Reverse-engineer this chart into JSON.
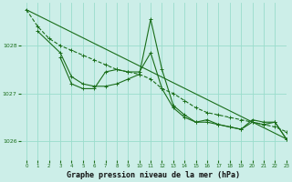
{
  "background_color": "#cceee8",
  "grid_color": "#99ddcc",
  "line_color": "#1a6e1a",
  "title": "Graphe pression niveau de la mer (hPa)",
  "xlim": [
    -0.5,
    23
  ],
  "ylim": [
    1025.6,
    1028.9
  ],
  "yticks": [
    1026,
    1027,
    1028
  ],
  "xticks": [
    0,
    1,
    2,
    3,
    4,
    5,
    6,
    7,
    8,
    9,
    10,
    11,
    12,
    13,
    14,
    15,
    16,
    17,
    18,
    19,
    20,
    21,
    22,
    23
  ],
  "series": [
    {
      "x": [
        0,
        1,
        2,
        3,
        4,
        5,
        6,
        7,
        8,
        9,
        10,
        11,
        12,
        13,
        14,
        15,
        16,
        17,
        18,
        19,
        20,
        21,
        22,
        23
      ],
      "y": [
        1028.75,
        1028.4,
        1028.15,
        1028.0,
        1027.9,
        1027.8,
        1027.7,
        1027.6,
        1027.5,
        1027.45,
        1027.4,
        1027.3,
        1027.1,
        1027.0,
        1026.85,
        1026.7,
        1026.6,
        1026.55,
        1026.5,
        1026.45,
        1026.4,
        1026.35,
        1026.3,
        1026.2
      ],
      "style": "dashed",
      "marker": "+"
    },
    {
      "x": [
        1,
        3,
        4,
        5,
        6,
        7,
        8,
        9,
        10,
        11,
        12,
        13,
        14,
        15,
        16,
        17,
        18,
        19,
        20,
        21,
        22,
        23
      ],
      "y": [
        1028.3,
        1027.85,
        1027.35,
        1027.2,
        1027.15,
        1027.15,
        1027.2,
        1027.3,
        1027.4,
        1028.55,
        1027.5,
        1026.75,
        1026.55,
        1026.4,
        1026.4,
        1026.35,
        1026.3,
        1026.25,
        1026.4,
        1026.35,
        1026.4,
        1026.05
      ],
      "style": "solid",
      "marker": "+"
    },
    {
      "x": [
        3,
        4,
        5,
        6,
        7,
        8,
        9,
        10,
        11,
        12,
        13,
        14,
        15,
        16,
        17,
        18,
        19,
        20,
        21,
        22,
        23
      ],
      "y": [
        1027.75,
        1027.2,
        1027.1,
        1027.1,
        1027.45,
        1027.5,
        1027.45,
        1027.45,
        1027.85,
        1027.1,
        1026.7,
        1026.5,
        1026.4,
        1026.45,
        1026.35,
        1026.3,
        1026.25,
        1026.45,
        1026.4,
        1026.4,
        1026.05
      ],
      "style": "solid",
      "marker": "+"
    },
    {
      "x": [
        0,
        23
      ],
      "y": [
        1028.75,
        1026.05
      ],
      "style": "solid",
      "marker": null
    }
  ]
}
